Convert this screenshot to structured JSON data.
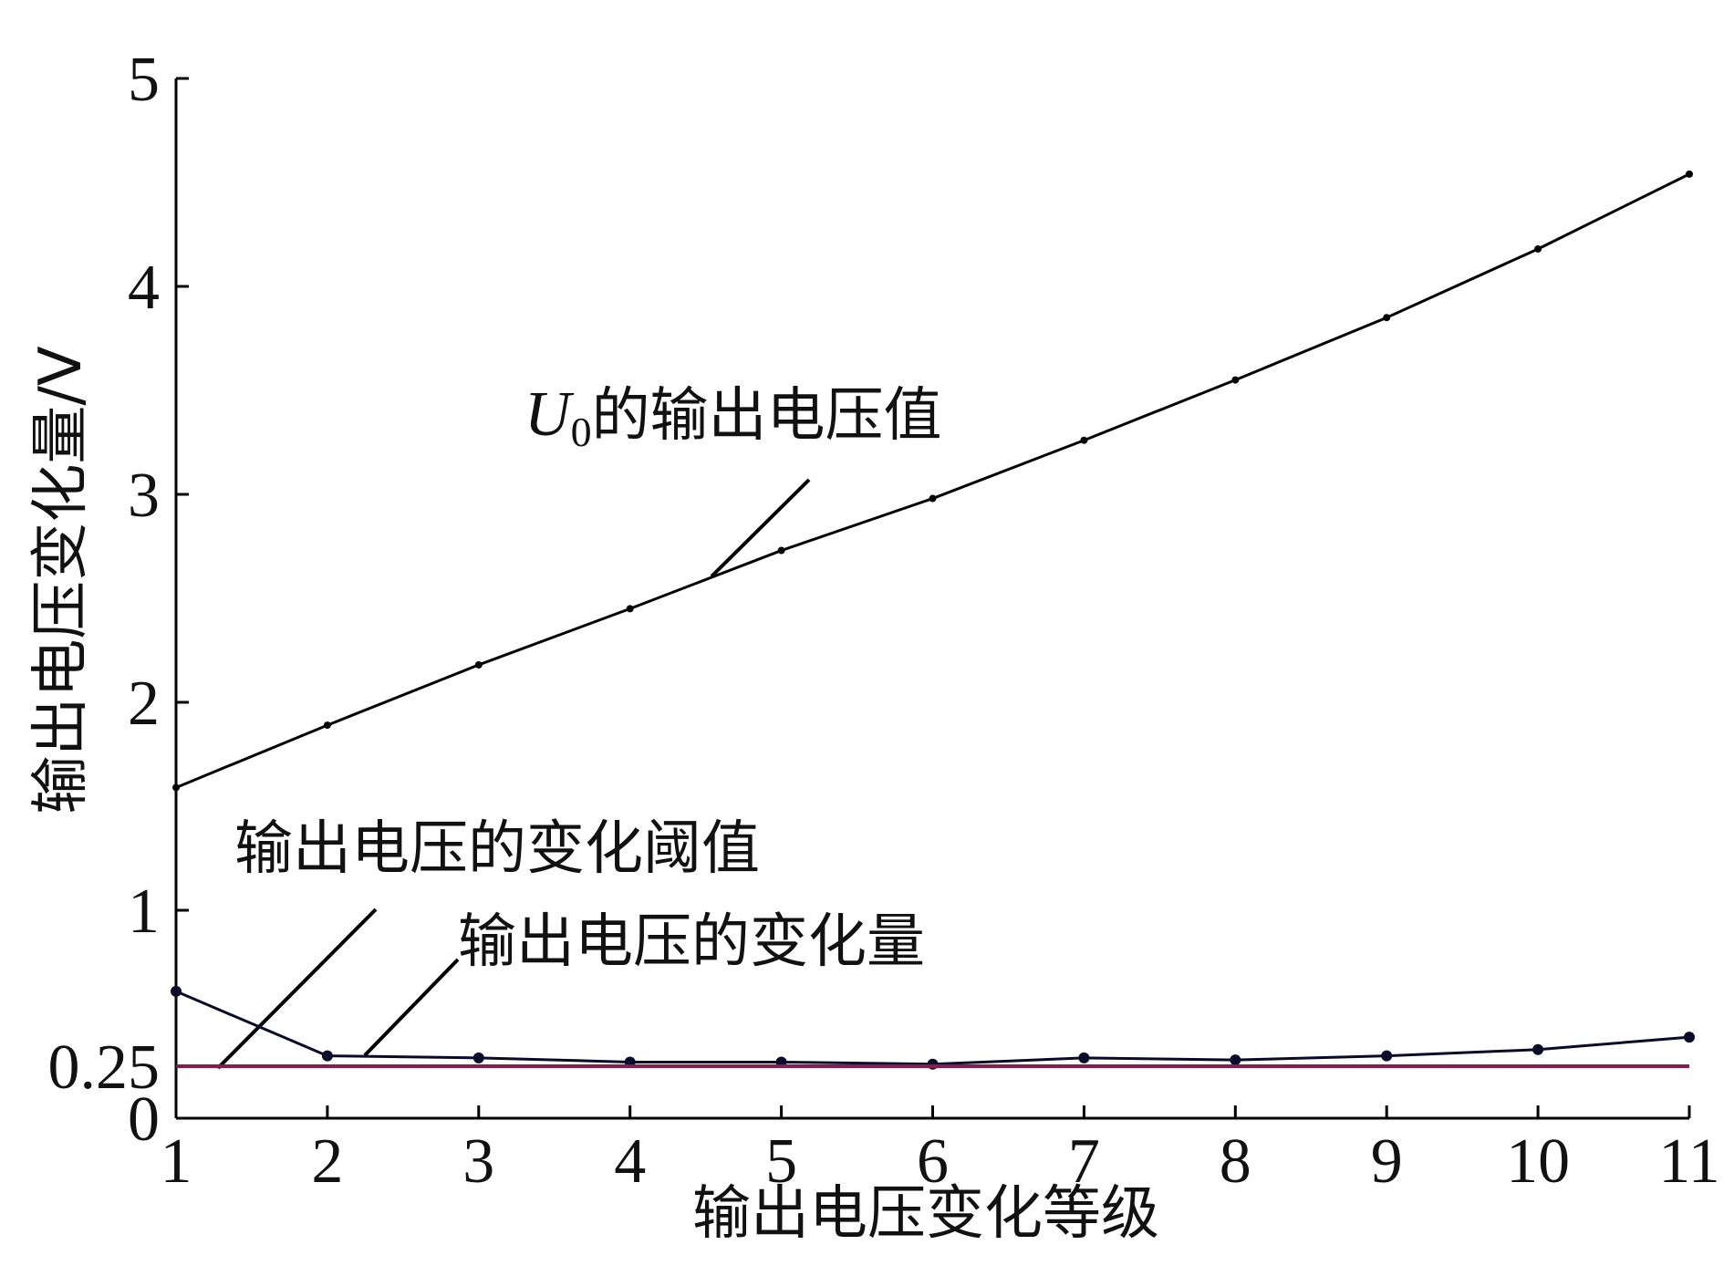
{
  "chart_data": {
    "type": "line",
    "x_label": "输出电压变化等级",
    "y_label": "输出电压变化量/V",
    "x": [
      1,
      2,
      3,
      4,
      5,
      6,
      7,
      8,
      9,
      10,
      11
    ],
    "xlim": [
      1,
      11
    ],
    "xticks": [
      1,
      2,
      3,
      4,
      5,
      6,
      7,
      8,
      9,
      10,
      11
    ],
    "ylim": [
      0,
      5
    ],
    "yticks": [
      0,
      0.25,
      1,
      2,
      3,
      4,
      5
    ],
    "series": [
      {
        "color": "#000000",
        "values": [
          1.59,
          1.89,
          2.18,
          2.45,
          2.73,
          2.98,
          3.26,
          3.55,
          3.85,
          4.18,
          4.54
        ]
      },
      {
        "color": "#0a0a2a",
        "values": [
          0.61,
          0.3,
          0.29,
          0.27,
          0.27,
          0.26,
          0.29,
          0.28,
          0.3,
          0.33,
          0.39
        ]
      },
      {
        "color": "#8b1a4a",
        "values": [
          0.25,
          0.25,
          0.25,
          0.25,
          0.25,
          0.25,
          0.25,
          0.25,
          0.25,
          0.25,
          0.25
        ]
      }
    ],
    "annotations": [
      {
        "series": 0,
        "text": [
          "U",
          "0",
          "的输出电压值"
        ]
      },
      {
        "series": 2,
        "text": [
          "输出电压的变化阈值"
        ]
      },
      {
        "series": 1,
        "text": [
          "输出电压的变化量"
        ]
      }
    ]
  }
}
